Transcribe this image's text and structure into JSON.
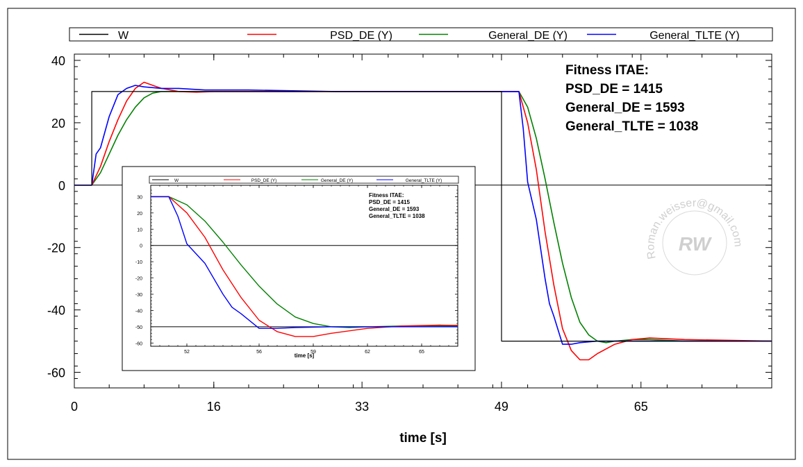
{
  "chart_data": {
    "type": "line",
    "xlabel": "time [s]",
    "ylabel": "",
    "xlim": [
      0,
      80
    ],
    "ylim": [
      -65,
      42
    ],
    "x_ticks": [
      "0",
      "16",
      "33",
      "49",
      "65"
    ],
    "x_tick_values": [
      0,
      16,
      33,
      49,
      65
    ],
    "y_ticks": [
      "40",
      "20",
      "0",
      "-20",
      "-40",
      "-60"
    ],
    "y_tick_values": [
      40,
      20,
      0,
      -20,
      -40,
      -60
    ],
    "grid": false,
    "legend": "top",
    "colors": {
      "W": "#000000",
      "PSD_DE": "#ff0000",
      "General_DE": "#008000",
      "General_TLTE": "#0000ff"
    },
    "series": [
      {
        "name": "W",
        "x": [
          0,
          2,
          2,
          49,
          49,
          80
        ],
        "y": [
          0,
          0,
          30,
          30,
          -50,
          -50
        ]
      },
      {
        "name": "PSD_DE (Y)",
        "x": [
          0,
          2,
          3,
          4,
          5,
          6,
          7,
          8,
          9,
          10,
          12,
          14,
          16,
          20,
          30,
          49,
          51,
          52,
          53,
          54,
          55,
          56,
          57,
          58,
          59,
          60,
          62,
          64,
          66,
          70,
          80
        ],
        "y": [
          0,
          0,
          6,
          14,
          21,
          27,
          31,
          33,
          32,
          31,
          30,
          29.8,
          30,
          30,
          30,
          30,
          30,
          20,
          5,
          -15,
          -32,
          -46,
          -53,
          -56,
          -56,
          -54,
          -51,
          -49.5,
          -49,
          -49.5,
          -50
        ]
      },
      {
        "name": "General_DE (Y)",
        "x": [
          0,
          2,
          3,
          4,
          5,
          6,
          7,
          8,
          9,
          10,
          12,
          14,
          20,
          30,
          49,
          51,
          52,
          53,
          54,
          55,
          56,
          57,
          58,
          59,
          60,
          61,
          62,
          64,
          66,
          70,
          80
        ],
        "y": [
          0,
          0,
          4,
          10,
          16,
          21,
          25,
          28,
          29.5,
          30,
          30,
          30,
          30,
          30,
          30,
          30,
          25,
          15,
          2,
          -12,
          -25,
          -36,
          -44,
          -48,
          -50,
          -50.5,
          -50,
          -49.5,
          -49.5,
          -50,
          -50
        ]
      },
      {
        "name": "General_TLTE (Y)",
        "x": [
          0,
          2,
          2.5,
          3,
          4,
          5,
          6,
          7,
          8,
          10,
          12,
          15,
          20,
          30,
          49,
          51,
          51.5,
          52,
          53,
          54,
          54.5,
          55,
          56,
          57,
          58,
          60,
          62,
          64,
          70,
          80
        ],
        "y": [
          0,
          0,
          10,
          12,
          22,
          29,
          31,
          32,
          31.5,
          31,
          31,
          30.5,
          30.5,
          30,
          30,
          30,
          18,
          1,
          -11,
          -30,
          -38,
          -42,
          -51,
          -51,
          -50.5,
          -50,
          -50,
          -50,
          -50,
          -50
        ]
      }
    ],
    "annotations": [
      "Fitness ITAE:",
      "PSD_DE = 1415",
      "General_DE = 1593",
      "General_TLTE = 1038"
    ]
  },
  "inset_chart": {
    "xlabel": "time [s]",
    "xlim": [
      50,
      67
    ],
    "ylim": [
      -62,
      37
    ],
    "x_ticks": [
      "52",
      "56",
      "59",
      "62",
      "65"
    ],
    "x_tick_values": [
      52,
      56,
      59,
      62,
      65
    ],
    "y_ticks": [
      "30",
      "20",
      "10",
      "0",
      "-10",
      "-20",
      "-30",
      "-40",
      "-50",
      "-60"
    ],
    "y_tick_values": [
      30,
      20,
      10,
      0,
      -10,
      -20,
      -30,
      -40,
      -50,
      -60
    ],
    "legend": [
      "W",
      "PSD_DE (Y)",
      "General_DE (Y)",
      "General_TLTE (Y)"
    ],
    "annotations": [
      "Fitness ITAE:",
      "PSD_DE = 1415",
      "General_DE = 1593",
      "General_TLTE = 1038"
    ],
    "hlines": [
      0,
      -50
    ]
  },
  "watermark": "Roman.weisser@gmail.com"
}
